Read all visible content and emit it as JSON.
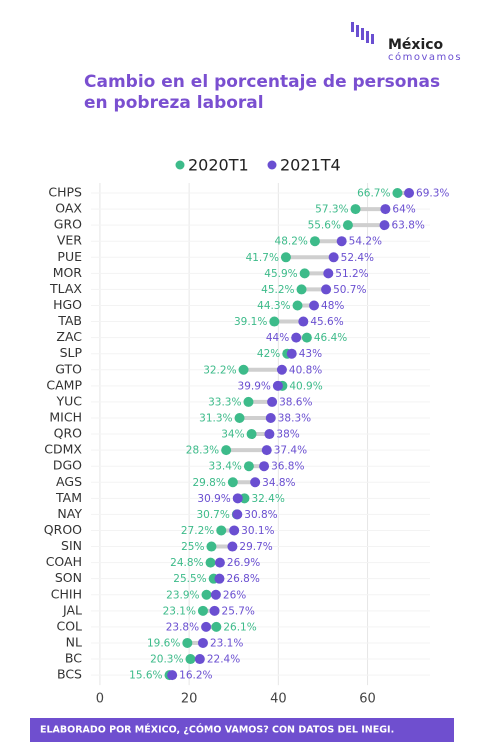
{
  "logo": {
    "name": "México",
    "tagline": "cómovamos"
  },
  "footer": "ELABORADO POR MÉXICO, ¿CÓMO VAMOS? CON DATOS DEL INEGI.",
  "chart_data": {
    "type": "dumbbell",
    "title": [
      "Cambio en el porcentaje de personas",
      "en pobreza laboral"
    ],
    "categories": [
      "CHPS",
      "OAX",
      "GRO",
      "VER",
      "PUE",
      "MOR",
      "TLAX",
      "HGO",
      "TAB",
      "ZAC",
      "SLP",
      "GTO",
      "CAMP",
      "YUC",
      "MICH",
      "QRO",
      "CDMX",
      "DGO",
      "AGS",
      "TAM",
      "NAY",
      "QROO",
      "SIN",
      "COAH",
      "SON",
      "CHIH",
      "JAL",
      "COL",
      "NL",
      "BC",
      "BCS"
    ],
    "series": [
      {
        "name": "2020T1",
        "color": "#3dbb8a",
        "values": [
          66.7,
          57.3,
          55.6,
          48.2,
          41.7,
          45.9,
          45.2,
          44.3,
          39.1,
          46.4,
          42,
          32.2,
          40.9,
          33.3,
          31.3,
          34,
          28.3,
          33.4,
          29.8,
          32.4,
          30.7,
          27.2,
          25,
          24.8,
          25.5,
          23.9,
          23.1,
          26.1,
          19.6,
          20.3,
          15.6
        ],
        "value_labels": [
          "66.7%",
          "57.3%",
          "55.6%",
          "48.2%",
          "41.7%",
          "45.9%",
          "45.2%",
          "44.3%",
          "39.1%",
          "46.4%",
          "42%",
          "32.2%",
          "40.9%",
          "33.3%",
          "31.3%",
          "34%",
          "28.3%",
          "33.4%",
          "29.8%",
          "32.4%",
          "30.7%",
          "27.2%",
          "25%",
          "24.8%",
          "25.5%",
          "23.9%",
          "23.1%",
          "26.1%",
          "19.6%",
          "20.3%",
          "15.6%"
        ]
      },
      {
        "name": "2021T4",
        "color": "#6a4fd1",
        "values": [
          69.3,
          64,
          63.8,
          54.2,
          52.4,
          51.2,
          50.7,
          48,
          45.6,
          44,
          43,
          40.8,
          39.9,
          38.6,
          38.3,
          38,
          37.4,
          36.8,
          34.8,
          30.9,
          30.8,
          30.1,
          29.7,
          26.9,
          26.8,
          26,
          25.7,
          23.8,
          23.1,
          22.4,
          16.2
        ],
        "value_labels": [
          "69.3%",
          "64%",
          "63.8%",
          "54.2%",
          "52.4%",
          "51.2%",
          "50.7%",
          "48%",
          "45.6%",
          "44%",
          "43%",
          "40.8%",
          "39.9%",
          "38.6%",
          "38.3%",
          "38%",
          "37.4%",
          "36.8%",
          "34.8%",
          "30.9%",
          "30.8%",
          "30.1%",
          "29.7%",
          "26.9%",
          "26.8%",
          "26%",
          "25.7%",
          "23.8%",
          "23.1%",
          "22.4%",
          "16.2%"
        ]
      }
    ],
    "xlim": [
      -2,
      74
    ],
    "xticks": [
      0,
      20,
      40,
      60
    ],
    "grid": true
  }
}
